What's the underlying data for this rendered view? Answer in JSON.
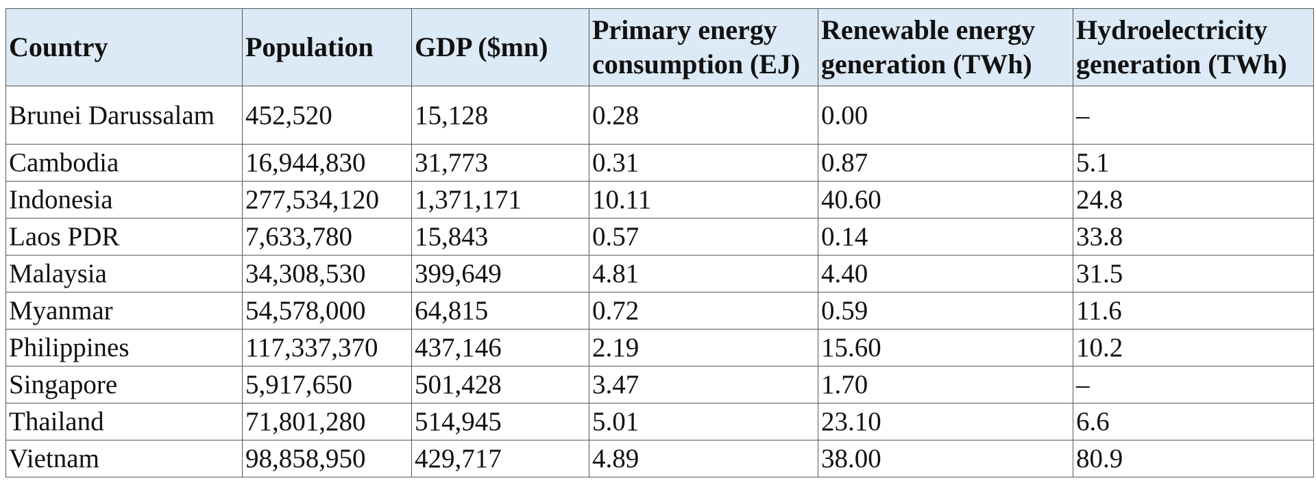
{
  "table": {
    "headers": [
      "Country",
      "Population",
      "GDP ($mn)",
      "Primary energy consumption (EJ)",
      "Renewable energy generation (TWh)",
      "Hydroelectricity generation (TWh)"
    ],
    "rows": [
      [
        "Brunei Darussalam",
        "452,520",
        "15,128",
        "0.28",
        "0.00",
        "–"
      ],
      [
        "Cambodia",
        "16,944,830",
        "31,773",
        "0.31",
        "0.87",
        "5.1"
      ],
      [
        "Indonesia",
        "277,534,120",
        "1,371,171",
        "10.11",
        "40.60",
        "24.8"
      ],
      [
        "Laos PDR",
        "7,633,780",
        "15,843",
        "0.57",
        "0.14",
        "33.8"
      ],
      [
        "Malaysia",
        "34,308,530",
        "399,649",
        "4.81",
        "4.40",
        "31.5"
      ],
      [
        "Myanmar",
        "54,578,000",
        "64,815",
        "0.72",
        "0.59",
        "11.6"
      ],
      [
        "Philippines",
        "117,337,370",
        "437,146",
        "2.19",
        "15.60",
        "10.2"
      ],
      [
        "Singapore",
        "5,917,650",
        "501,428",
        "3.47",
        "1.70",
        "–"
      ],
      [
        "Thailand",
        "71,801,280",
        "514,945",
        "5.01",
        "23.10",
        "6.6"
      ],
      [
        "Vietnam",
        "98,858,950",
        "429,717",
        "4.89",
        "38.00",
        "80.9"
      ]
    ]
  }
}
